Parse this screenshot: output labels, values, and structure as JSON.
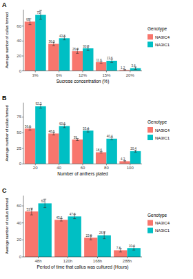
{
  "chart_data": [
    {
      "type": "bar",
      "title": "A",
      "x_label": "Sucrose concentration (%)",
      "y_label": "Average number of callus formed",
      "categories": [
        "3%",
        "6%",
        "12%",
        "15%",
        "20%"
      ],
      "series": [
        {
          "name": "NA3IC4",
          "color": "#f8766d",
          "values": [
            66,
            36.2,
            26.4,
            11.6,
            1.2
          ],
          "errors": [
            4,
            2.4,
            3,
            1.4,
            0.8
          ]
        },
        {
          "name": "NA3IC1",
          "color": "#00bfc4",
          "values": [
            75,
            43.8,
            30.2,
            13.6,
            3.6
          ],
          "errors": [
            6,
            2.2,
            3,
            2.2,
            1.6
          ]
        }
      ],
      "ylim": [
        0,
        82
      ],
      "yticks": [
        0,
        20,
        40,
        60
      ],
      "grid": false,
      "legend": "right",
      "legend_title": "Genotype",
      "data_labels": true
    },
    {
      "type": "bar",
      "title": "B",
      "x_label": "Number of anthers plated",
      "y_label": "Average number of callus formed",
      "categories": [
        "20",
        "40",
        "60",
        "80",
        "100"
      ],
      "series": [
        {
          "name": "NA3IC4",
          "color": "#f8766d",
          "values": [
            56.6,
            48.6,
            39,
            18.6,
            4.3
          ],
          "errors": [
            2.4,
            2.2,
            1.6,
            1.2,
            1
          ]
        },
        {
          "name": "NA3IC1",
          "color": "#00bfc4",
          "values": [
            92.2,
            60.6,
            53.4,
            40.4,
            20.4
          ],
          "errors": [
            3,
            2.6,
            2.4,
            2,
            1.6
          ]
        }
      ],
      "ylim": [
        0,
        98
      ],
      "yticks": [
        0,
        25,
        50,
        75
      ],
      "grid": false,
      "legend": "right",
      "legend_title": "Genotype",
      "data_labels": true
    },
    {
      "type": "bar",
      "title": "C",
      "x_label": "Period of time that callus was cultured (Hours)",
      "y_label": "Average number of callus formed",
      "categories": [
        "48h",
        "120h",
        "168h",
        "288h"
      ],
      "series": [
        {
          "name": "NA3IC4",
          "color": "#f8766d",
          "values": [
            53.4,
            43.6,
            22.6,
            7.8
          ],
          "errors": [
            4,
            1.4,
            2.6,
            2
          ]
        },
        {
          "name": "NA3IC1",
          "color": "#00bfc4",
          "values": [
            63,
            47.6,
            25.4,
            10.4
          ],
          "errors": [
            5,
            2.6,
            4,
            2.4
          ]
        }
      ],
      "ylim": [
        0,
        72
      ],
      "yticks": [
        0,
        20,
        40,
        60
      ],
      "grid": false,
      "legend": "right",
      "legend_title": "Genotype",
      "data_labels": true
    }
  ]
}
